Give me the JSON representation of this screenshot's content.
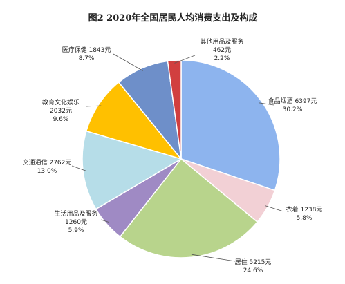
{
  "chart_data": {
    "type": "pie",
    "title": "图2   2020年全国居民人均消费支出及构成",
    "categories": [
      "食品烟酒",
      "衣着",
      "居住",
      "生活用品及服务",
      "交通通信",
      "教育文化娱乐",
      "医疗保健",
      "其他用品及服务"
    ],
    "values": [
      6397,
      1238,
      5215,
      1260,
      2762,
      2032,
      1843,
      462
    ],
    "percents": [
      30.2,
      5.8,
      24.6,
      5.9,
      13.0,
      9.6,
      8.7,
      2.2
    ],
    "colors": [
      "#8db4ee",
      "#f2d0d5",
      "#b8d48c",
      "#9f8ac4",
      "#b6dde8",
      "#ffc000",
      "#6e8fc9",
      "#d13f3f"
    ],
    "labels": [
      {
        "name": "食品烟酒",
        "value": "6397元",
        "pct": "30.2%"
      },
      {
        "name": "衣着",
        "value": "1238元",
        "pct": "5.8%"
      },
      {
        "name": "居住",
        "value": "5215元",
        "pct": "24.6%"
      },
      {
        "name": "生活用品及服务",
        "value": "1260元",
        "pct": "5.9%"
      },
      {
        "name": "交通通信",
        "value": "2762元",
        "pct": "13.0%"
      },
      {
        "name": "教育文化娱乐",
        "value": "2032元",
        "pct": "9.6%"
      },
      {
        "name": "医疗保健",
        "value": "1843元",
        "pct": "8.7%"
      },
      {
        "name": "其他用品及服务",
        "value": "462元",
        "pct": "2.2%"
      }
    ]
  }
}
